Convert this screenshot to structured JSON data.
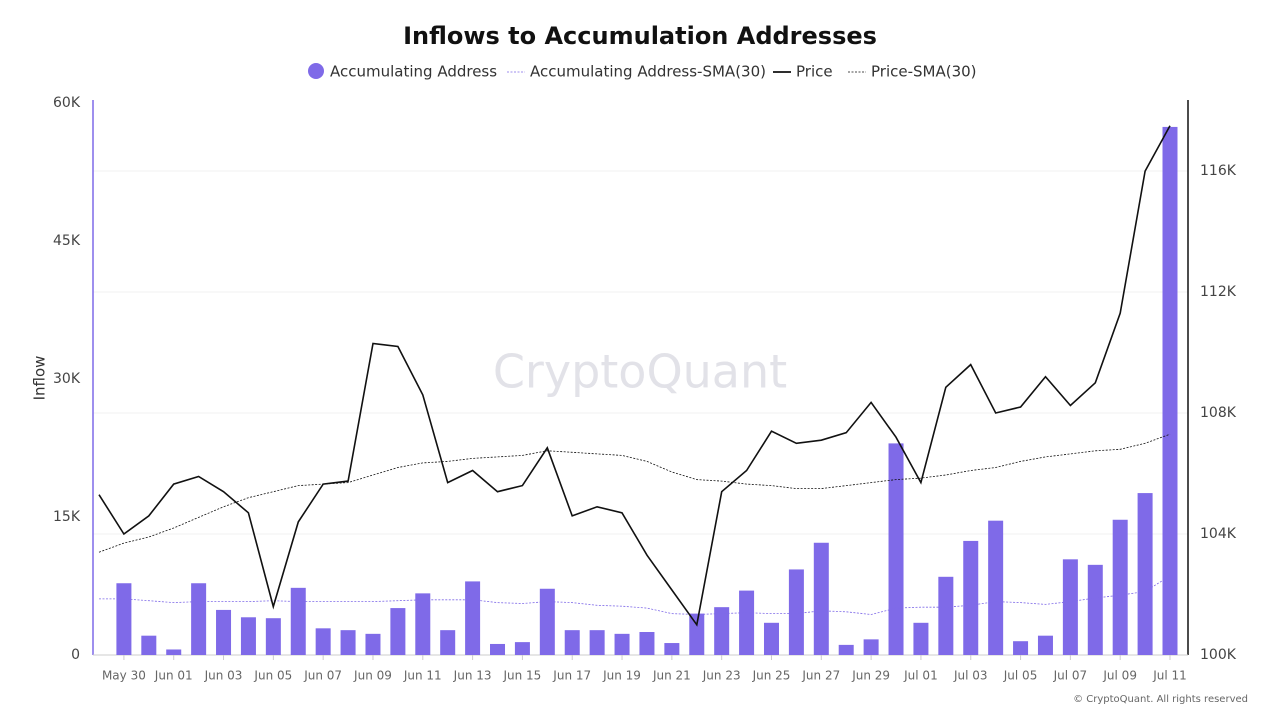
{
  "chart_data": {
    "type": "combo",
    "title": "Inflows to Accumulation Addresses",
    "y_label": "Inflow",
    "watermark": "CryptoQuant",
    "footer": "© CryptoQuant. All rights reserved",
    "grid": true,
    "categories": [
      null,
      "May 30",
      null,
      "Jun 01",
      null,
      "Jun 03",
      null,
      "Jun 05",
      null,
      "Jun 07",
      null,
      "Jun 09",
      null,
      "Jun 11",
      null,
      "Jun 13",
      null,
      "Jun 15",
      null,
      "Jun 17",
      null,
      "Jun 19",
      null,
      "Jun 21",
      null,
      "Jun 23",
      null,
      "Jun 25",
      null,
      "Jun 27",
      null,
      "Jun 29",
      null,
      "Jul 01",
      null,
      "Jul 03",
      null,
      "Jul 05",
      null,
      "Jul 07",
      null,
      "Jul 09",
      null,
      "Jul 11"
    ],
    "ylim": [
      0,
      60000
    ],
    "yticks": [
      0,
      {
        "value": 15000,
        "label": "15K"
      },
      {
        "value": 30000,
        "label": "30K"
      },
      {
        "value": 45000,
        "label": "45K"
      },
      {
        "value": 60000,
        "label": "60K"
      }
    ],
    "y2lim": [
      100000,
      118250
    ],
    "y2ticks": [
      {
        "value": 100000,
        "label": "100K"
      },
      {
        "value": 104000,
        "label": "104K"
      },
      {
        "value": 108000,
        "label": "108K"
      },
      {
        "value": 112000,
        "label": "112K"
      },
      {
        "value": 116000,
        "label": "116K"
      }
    ],
    "series": [
      {
        "name": "Accumulating Address",
        "type": "bar",
        "color": "#7f6ae8",
        "values": [
          null,
          7800,
          2100,
          600,
          7800,
          4900,
          4100,
          4000,
          7300,
          2900,
          2700,
          2300,
          5100,
          6700,
          2700,
          8000,
          1200,
          1400,
          7200,
          2700,
          2700,
          2300,
          2500,
          1300,
          4500,
          5200,
          7000,
          3500,
          9300,
          12200,
          1100,
          1700,
          23000,
          3500,
          8500,
          12400,
          14600,
          1500,
          2100,
          10400,
          9800,
          14700,
          17600,
          57400
        ]
      },
      {
        "name": "Accumulating Address-SMA(30)",
        "type": "dotted",
        "color": "#7f6ae8",
        "values": [
          6100,
          6100,
          5900,
          5700,
          5800,
          5800,
          5800,
          5900,
          5800,
          5800,
          5800,
          5800,
          5900,
          6000,
          6000,
          6000,
          5700,
          5600,
          5800,
          5700,
          5400,
          5300,
          5100,
          4500,
          4400,
          4500,
          4600,
          4500,
          4500,
          4800,
          4700,
          4400,
          5100,
          5200,
          5200,
          5400,
          5800,
          5700,
          5500,
          5800,
          6200,
          6500,
          6900,
          8600
        ]
      },
      {
        "name": "Price",
        "type": "line",
        "color": "#111111",
        "axis": "y2",
        "values": [
          105300,
          104000,
          104600,
          105650,
          105900,
          105400,
          104700,
          101600,
          104400,
          105650,
          105750,
          110300,
          110200,
          108600,
          105700,
          106100,
          105400,
          105600,
          106850,
          104600,
          104900,
          104700,
          103300,
          102150,
          101000,
          105400,
          106100,
          107400,
          107000,
          107100,
          107350,
          108350,
          107200,
          105700,
          108850,
          109600,
          108000,
          108200,
          109200,
          108250,
          109000,
          111300,
          116000,
          117500
        ]
      },
      {
        "name": "Price-SMA(30)",
        "type": "dotted",
        "color": "#111111",
        "axis": "y2",
        "values": [
          103400,
          103700,
          103900,
          104200,
          104550,
          104900,
          105200,
          105400,
          105600,
          105650,
          105700,
          105950,
          106200,
          106350,
          106400,
          106500,
          106550,
          106600,
          106750,
          106700,
          106650,
          106600,
          106400,
          106050,
          105800,
          105750,
          105650,
          105600,
          105500,
          105500,
          105600,
          105700,
          105800,
          105850,
          105950,
          106100,
          106200,
          106400,
          106550,
          106650,
          106750,
          106800,
          107000,
          107300
        ]
      }
    ]
  }
}
